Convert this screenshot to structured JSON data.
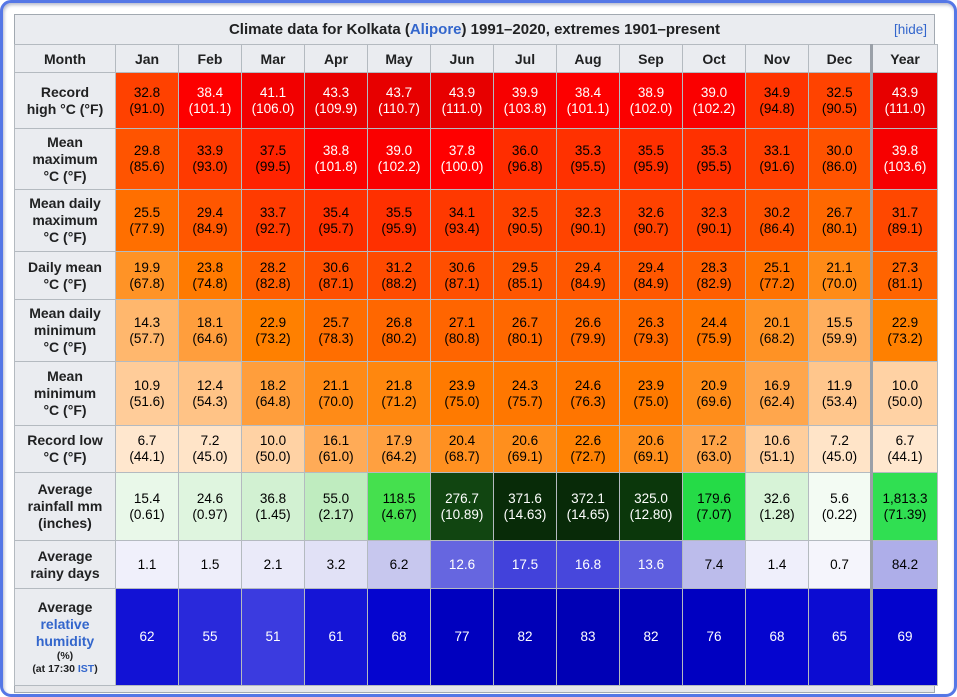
{
  "table": {
    "title": {
      "prefix": "Climate data for Kolkata (",
      "location_link": "Alipore",
      "suffix": ") 1991–2020, extremes 1901–present",
      "hide_label": "[hide]"
    },
    "columns": [
      "Month",
      "Jan",
      "Feb",
      "Mar",
      "Apr",
      "May",
      "Jun",
      "Jul",
      "Aug",
      "Sep",
      "Oct",
      "Nov",
      "Dec",
      "Year"
    ],
    "humidity_label": {
      "line1": "Average",
      "link_text": "relative humidity",
      "pct": "(%)",
      "time_prefix": "(at 17:30 ",
      "time_link": "IST",
      "time_suffix": ")"
    },
    "rows": [
      {
        "name": "record-high",
        "label_lines": [
          "Record",
          "high °C (°F)"
        ],
        "cells": [
          [
            "32.8",
            "(91.0)",
            "#FF4100",
            "#000000"
          ],
          [
            "38.4",
            "(101.1)",
            "#FD0000",
            "#FFFFFF"
          ],
          [
            "41.1",
            "(106.0)",
            "#F20000",
            "#FFFFFF"
          ],
          [
            "43.3",
            "(109.9)",
            "#E90000",
            "#FFFFFF"
          ],
          [
            "43.7",
            "(110.7)",
            "#E70000",
            "#FFFFFF"
          ],
          [
            "43.9",
            "(111.0)",
            "#E70000",
            "#FFFFFF"
          ],
          [
            "39.9",
            "(103.8)",
            "#F70000",
            "#FFFFFF"
          ],
          [
            "38.4",
            "(101.1)",
            "#FD0000",
            "#FFFFFF"
          ],
          [
            "38.9",
            "(102.0)",
            "#FB0000",
            "#FFFFFF"
          ],
          [
            "39.0",
            "(102.2)",
            "#FA0000",
            "#FFFFFF"
          ],
          [
            "34.9",
            "(94.8)",
            "#FF3400",
            "#000000"
          ],
          [
            "32.5",
            "(90.5)",
            "#FF4300",
            "#000000"
          ],
          [
            "43.9",
            "(111.0)",
            "#E70000",
            "#FFFFFF"
          ]
        ]
      },
      {
        "name": "mean-maximum",
        "label_lines": [
          "Mean",
          "maximum",
          "°C (°F)"
        ],
        "cells": [
          [
            "29.8",
            "(85.6)",
            "#FF5400",
            "#000000"
          ],
          [
            "33.9",
            "(93.0)",
            "#FF3A00",
            "#000000"
          ],
          [
            "37.5",
            "(99.5)",
            "#FF2300",
            "#000000"
          ],
          [
            "38.8",
            "(101.8)",
            "#FB0000",
            "#FFFFFF"
          ],
          [
            "39.0",
            "(102.2)",
            "#FA0000",
            "#FFFFFF"
          ],
          [
            "37.8",
            "(100.0)",
            "#FF0000",
            "#FFFFFF"
          ],
          [
            "36.0",
            "(96.8)",
            "#FF2D00",
            "#000000"
          ],
          [
            "35.3",
            "(95.5)",
            "#FF3100",
            "#000000"
          ],
          [
            "35.5",
            "(95.9)",
            "#FF3000",
            "#000000"
          ],
          [
            "35.3",
            "(95.5)",
            "#FF3100",
            "#000000"
          ],
          [
            "33.1",
            "(91.6)",
            "#FF3F00",
            "#000000"
          ],
          [
            "30.0",
            "(86.0)",
            "#FF5300",
            "#000000"
          ],
          [
            "39.8",
            "(103.6)",
            "#F70000",
            "#FFFFFF"
          ]
        ]
      },
      {
        "name": "mean-daily-maximum",
        "label_lines": [
          "Mean daily",
          "maximum",
          "°C (°F)"
        ],
        "cells": [
          [
            "25.5",
            "(77.9)",
            "#FF6F00",
            "#000000"
          ],
          [
            "29.4",
            "(84.9)",
            "#FF5700",
            "#000000"
          ],
          [
            "33.7",
            "(92.7)",
            "#FF3B00",
            "#000000"
          ],
          [
            "35.4",
            "(95.7)",
            "#FF3100",
            "#000000"
          ],
          [
            "35.5",
            "(95.9)",
            "#FF3000",
            "#000000"
          ],
          [
            "34.1",
            "(93.4)",
            "#FF3900",
            "#000000"
          ],
          [
            "32.5",
            "(90.5)",
            "#FF4300",
            "#000000"
          ],
          [
            "32.3",
            "(90.1)",
            "#FF4400",
            "#000000"
          ],
          [
            "32.6",
            "(90.7)",
            "#FF4200",
            "#000000"
          ],
          [
            "32.3",
            "(90.1)",
            "#FF4400",
            "#000000"
          ],
          [
            "30.2",
            "(86.4)",
            "#FF5200",
            "#000000"
          ],
          [
            "26.7",
            "(80.1)",
            "#FF6800",
            "#000000"
          ],
          [
            "31.7",
            "(89.1)",
            "#FF4800",
            "#000000"
          ]
        ]
      },
      {
        "name": "daily-mean",
        "label_lines": [
          "Daily mean",
          "°C (°F)"
        ],
        "cells": [
          [
            "19.9",
            "(67.8)",
            "#FF9326",
            "#000000"
          ],
          [
            "23.8",
            "(74.8)",
            "#FF7A00",
            "#000000"
          ],
          [
            "28.2",
            "(82.8)",
            "#FF5E00",
            "#000000"
          ],
          [
            "30.6",
            "(87.1)",
            "#FF4F00",
            "#000000"
          ],
          [
            "31.2",
            "(88.2)",
            "#FF4B00",
            "#000000"
          ],
          [
            "30.6",
            "(87.1)",
            "#FF4F00",
            "#000000"
          ],
          [
            "29.5",
            "(85.1)",
            "#FF5600",
            "#000000"
          ],
          [
            "29.4",
            "(84.9)",
            "#FF5700",
            "#000000"
          ],
          [
            "29.4",
            "(84.9)",
            "#FF5700",
            "#000000"
          ],
          [
            "28.3",
            "(82.9)",
            "#FF5E00",
            "#000000"
          ],
          [
            "25.1",
            "(77.2)",
            "#FF7200",
            "#000000"
          ],
          [
            "21.1",
            "(70.0)",
            "#FF8B17",
            "#000000"
          ],
          [
            "27.3",
            "(81.1)",
            "#FF6400",
            "#000000"
          ]
        ]
      },
      {
        "name": "mean-daily-minimum",
        "label_lines": [
          "Mean daily",
          "minimum",
          "°C (°F)"
        ],
        "cells": [
          [
            "14.3",
            "(57.7)",
            "#FFB76D",
            "#000000"
          ],
          [
            "18.1",
            "(64.6)",
            "#FF9E3D",
            "#000000"
          ],
          [
            "22.9",
            "(73.2)",
            "#FF8000",
            "#000000"
          ],
          [
            "25.7",
            "(78.3)",
            "#FF6E00",
            "#000000"
          ],
          [
            "26.8",
            "(80.2)",
            "#FF6700",
            "#000000"
          ],
          [
            "27.1",
            "(80.8)",
            "#FF6500",
            "#000000"
          ],
          [
            "26.7",
            "(80.1)",
            "#FF6800",
            "#000000"
          ],
          [
            "26.6",
            "(79.9)",
            "#FF6800",
            "#000000"
          ],
          [
            "26.3",
            "(79.3)",
            "#FF6A00",
            "#000000"
          ],
          [
            "24.4",
            "(75.9)",
            "#FF7600",
            "#000000"
          ],
          [
            "20.1",
            "(68.2)",
            "#FF9224",
            "#000000"
          ],
          [
            "15.5",
            "(59.9)",
            "#FFAF5E",
            "#000000"
          ],
          [
            "22.9",
            "(73.2)",
            "#FF8000",
            "#000000"
          ]
        ]
      },
      {
        "name": "mean-minimum",
        "label_lines": [
          "Mean",
          "minimum",
          "°C (°F)"
        ],
        "cells": [
          [
            "10.9",
            "(51.6)",
            "#FFCC99",
            "#000000"
          ],
          [
            "12.4",
            "(54.3)",
            "#FFC386",
            "#000000"
          ],
          [
            "18.2",
            "(64.8)",
            "#FF9E3C",
            "#000000"
          ],
          [
            "21.1",
            "(70.0)",
            "#FF8B17",
            "#000000"
          ],
          [
            "21.8",
            "(71.2)",
            "#FF870E",
            "#000000"
          ],
          [
            "23.9",
            "(75.0)",
            "#FF7A00",
            "#000000"
          ],
          [
            "24.3",
            "(75.7)",
            "#FF7700",
            "#000000"
          ],
          [
            "24.6",
            "(76.3)",
            "#FF7500",
            "#000000"
          ],
          [
            "23.9",
            "(75.0)",
            "#FF7A00",
            "#000000"
          ],
          [
            "20.9",
            "(69.6)",
            "#FF8D1A",
            "#000000"
          ],
          [
            "16.9",
            "(62.4)",
            "#FFA64C",
            "#000000"
          ],
          [
            "11.9",
            "(53.4)",
            "#FFC68C",
            "#000000"
          ],
          [
            "10.0",
            "(50.0)",
            "#FFD2A4",
            "#000000"
          ]
        ]
      },
      {
        "name": "record-low",
        "label_lines": [
          "Record low",
          "°C (°F)"
        ],
        "cells": [
          [
            "6.7",
            "(44.1)",
            "#FFE7CE",
            "#000000"
          ],
          [
            "7.2",
            "(45.0)",
            "#FFE4C8",
            "#000000"
          ],
          [
            "10.0",
            "(50.0)",
            "#FFD2A4",
            "#000000"
          ],
          [
            "16.1",
            "(61.0)",
            "#FFAB57",
            "#000000"
          ],
          [
            "17.9",
            "(64.2)",
            "#FFA040",
            "#000000"
          ],
          [
            "20.4",
            "(68.7)",
            "#FF9020",
            "#000000"
          ],
          [
            "20.6",
            "(69.1)",
            "#FF8F1D",
            "#000000"
          ],
          [
            "22.6",
            "(72.7)",
            "#FF8204",
            "#000000"
          ],
          [
            "20.6",
            "(69.1)",
            "#FF8F1D",
            "#000000"
          ],
          [
            "17.2",
            "(63.0)",
            "#FFA449",
            "#000000"
          ],
          [
            "10.6",
            "(51.1)",
            "#FFCE9C",
            "#000000"
          ],
          [
            "7.2",
            "(45.0)",
            "#FFE4C8",
            "#000000"
          ],
          [
            "6.7",
            "(44.1)",
            "#FFE7CE",
            "#000000"
          ]
        ]
      },
      {
        "name": "average-rainfall",
        "label_lines": [
          "Average",
          "rainfall mm",
          "(inches)"
        ],
        "cells": [
          [
            "15.4",
            "(0.61)",
            "#E9F8E9",
            "#000000"
          ],
          [
            "24.6",
            "(0.97)",
            "#DFF5DF",
            "#000000"
          ],
          [
            "36.8",
            "(1.45)",
            "#D2F1D2",
            "#000000"
          ],
          [
            "55.0",
            "(2.17)",
            "#BFECBF",
            "#000000"
          ],
          [
            "118.5",
            "(4.67)",
            "#45E04E",
            "#000000"
          ],
          [
            "276.7",
            "(10.89)",
            "#114511",
            "#FFFFFF"
          ],
          [
            "371.6",
            "(14.63)",
            "#082B08",
            "#FFFFFF"
          ],
          [
            "372.1",
            "(14.65)",
            "#082A08",
            "#FFFFFF"
          ],
          [
            "325.0",
            "(12.80)",
            "#0B370B",
            "#FFFFFF"
          ],
          [
            "179.6",
            "(7.07)",
            "#25DB47",
            "#000000"
          ],
          [
            "32.6",
            "(1.28)",
            "#D7F3D7",
            "#000000"
          ],
          [
            "5.6",
            "(0.22)",
            "#F3FBF3",
            "#000000"
          ],
          [
            "1,813.3",
            "(71.39)",
            "#30DF52",
            "#000000"
          ]
        ]
      },
      {
        "name": "average-rainy-days",
        "label_lines": [
          "Average",
          "rainy days"
        ],
        "cells": [
          [
            "1.1",
            "",
            "#F0F0FB",
            "#000000"
          ],
          [
            "1.5",
            "",
            "#EEEEFA",
            "#000000"
          ],
          [
            "2.1",
            "",
            "#EAEAF9",
            "#000000"
          ],
          [
            "3.2",
            "",
            "#E1E1F6",
            "#000000"
          ],
          [
            "6.2",
            "",
            "#C7C7EE",
            "#000000"
          ],
          [
            "12.6",
            "",
            "#6666E0",
            "#FFFFFF"
          ],
          [
            "17.5",
            "",
            "#4242DB",
            "#FFFFFF"
          ],
          [
            "16.8",
            "",
            "#4747DC",
            "#FFFFFF"
          ],
          [
            "13.6",
            "",
            "#5E5EDF",
            "#FFFFFF"
          ],
          [
            "7.4",
            "",
            "#BCBCEB",
            "#000000"
          ],
          [
            "1.4",
            "",
            "#EFEFFB",
            "#000000"
          ],
          [
            "0.7",
            "",
            "#F5F5FC",
            "#000000"
          ],
          [
            "84.2",
            "",
            "#AEAEE9",
            "#000000"
          ]
        ]
      },
      {
        "name": "average-relative-humidity",
        "label_type": "humidity",
        "label_lines": [],
        "cells": [
          [
            "62",
            "",
            "#1212D5",
            "#FFFFFF"
          ],
          [
            "55",
            "",
            "#2929DB",
            "#FFFFFF"
          ],
          [
            "51",
            "",
            "#3B3BDF",
            "#FFFFFF"
          ],
          [
            "61",
            "",
            "#1515D6",
            "#FFFFFF"
          ],
          [
            "68",
            "",
            "#0505CF",
            "#FFFFFF"
          ],
          [
            "77",
            "",
            "#0000BF",
            "#FFFFFF"
          ],
          [
            "82",
            "",
            "#0000B7",
            "#FFFFFF"
          ],
          [
            "83",
            "",
            "#0000B5",
            "#FFFFFF"
          ],
          [
            "82",
            "",
            "#0000B7",
            "#FFFFFF"
          ],
          [
            "76",
            "",
            "#0000C1",
            "#FFFFFF"
          ],
          [
            "68",
            "",
            "#0505CF",
            "#FFFFFF"
          ],
          [
            "65",
            "",
            "#0C0CD2",
            "#FFFFFF"
          ],
          [
            "69",
            "",
            "#0303CD",
            "#FFFFFF"
          ]
        ]
      }
    ]
  }
}
